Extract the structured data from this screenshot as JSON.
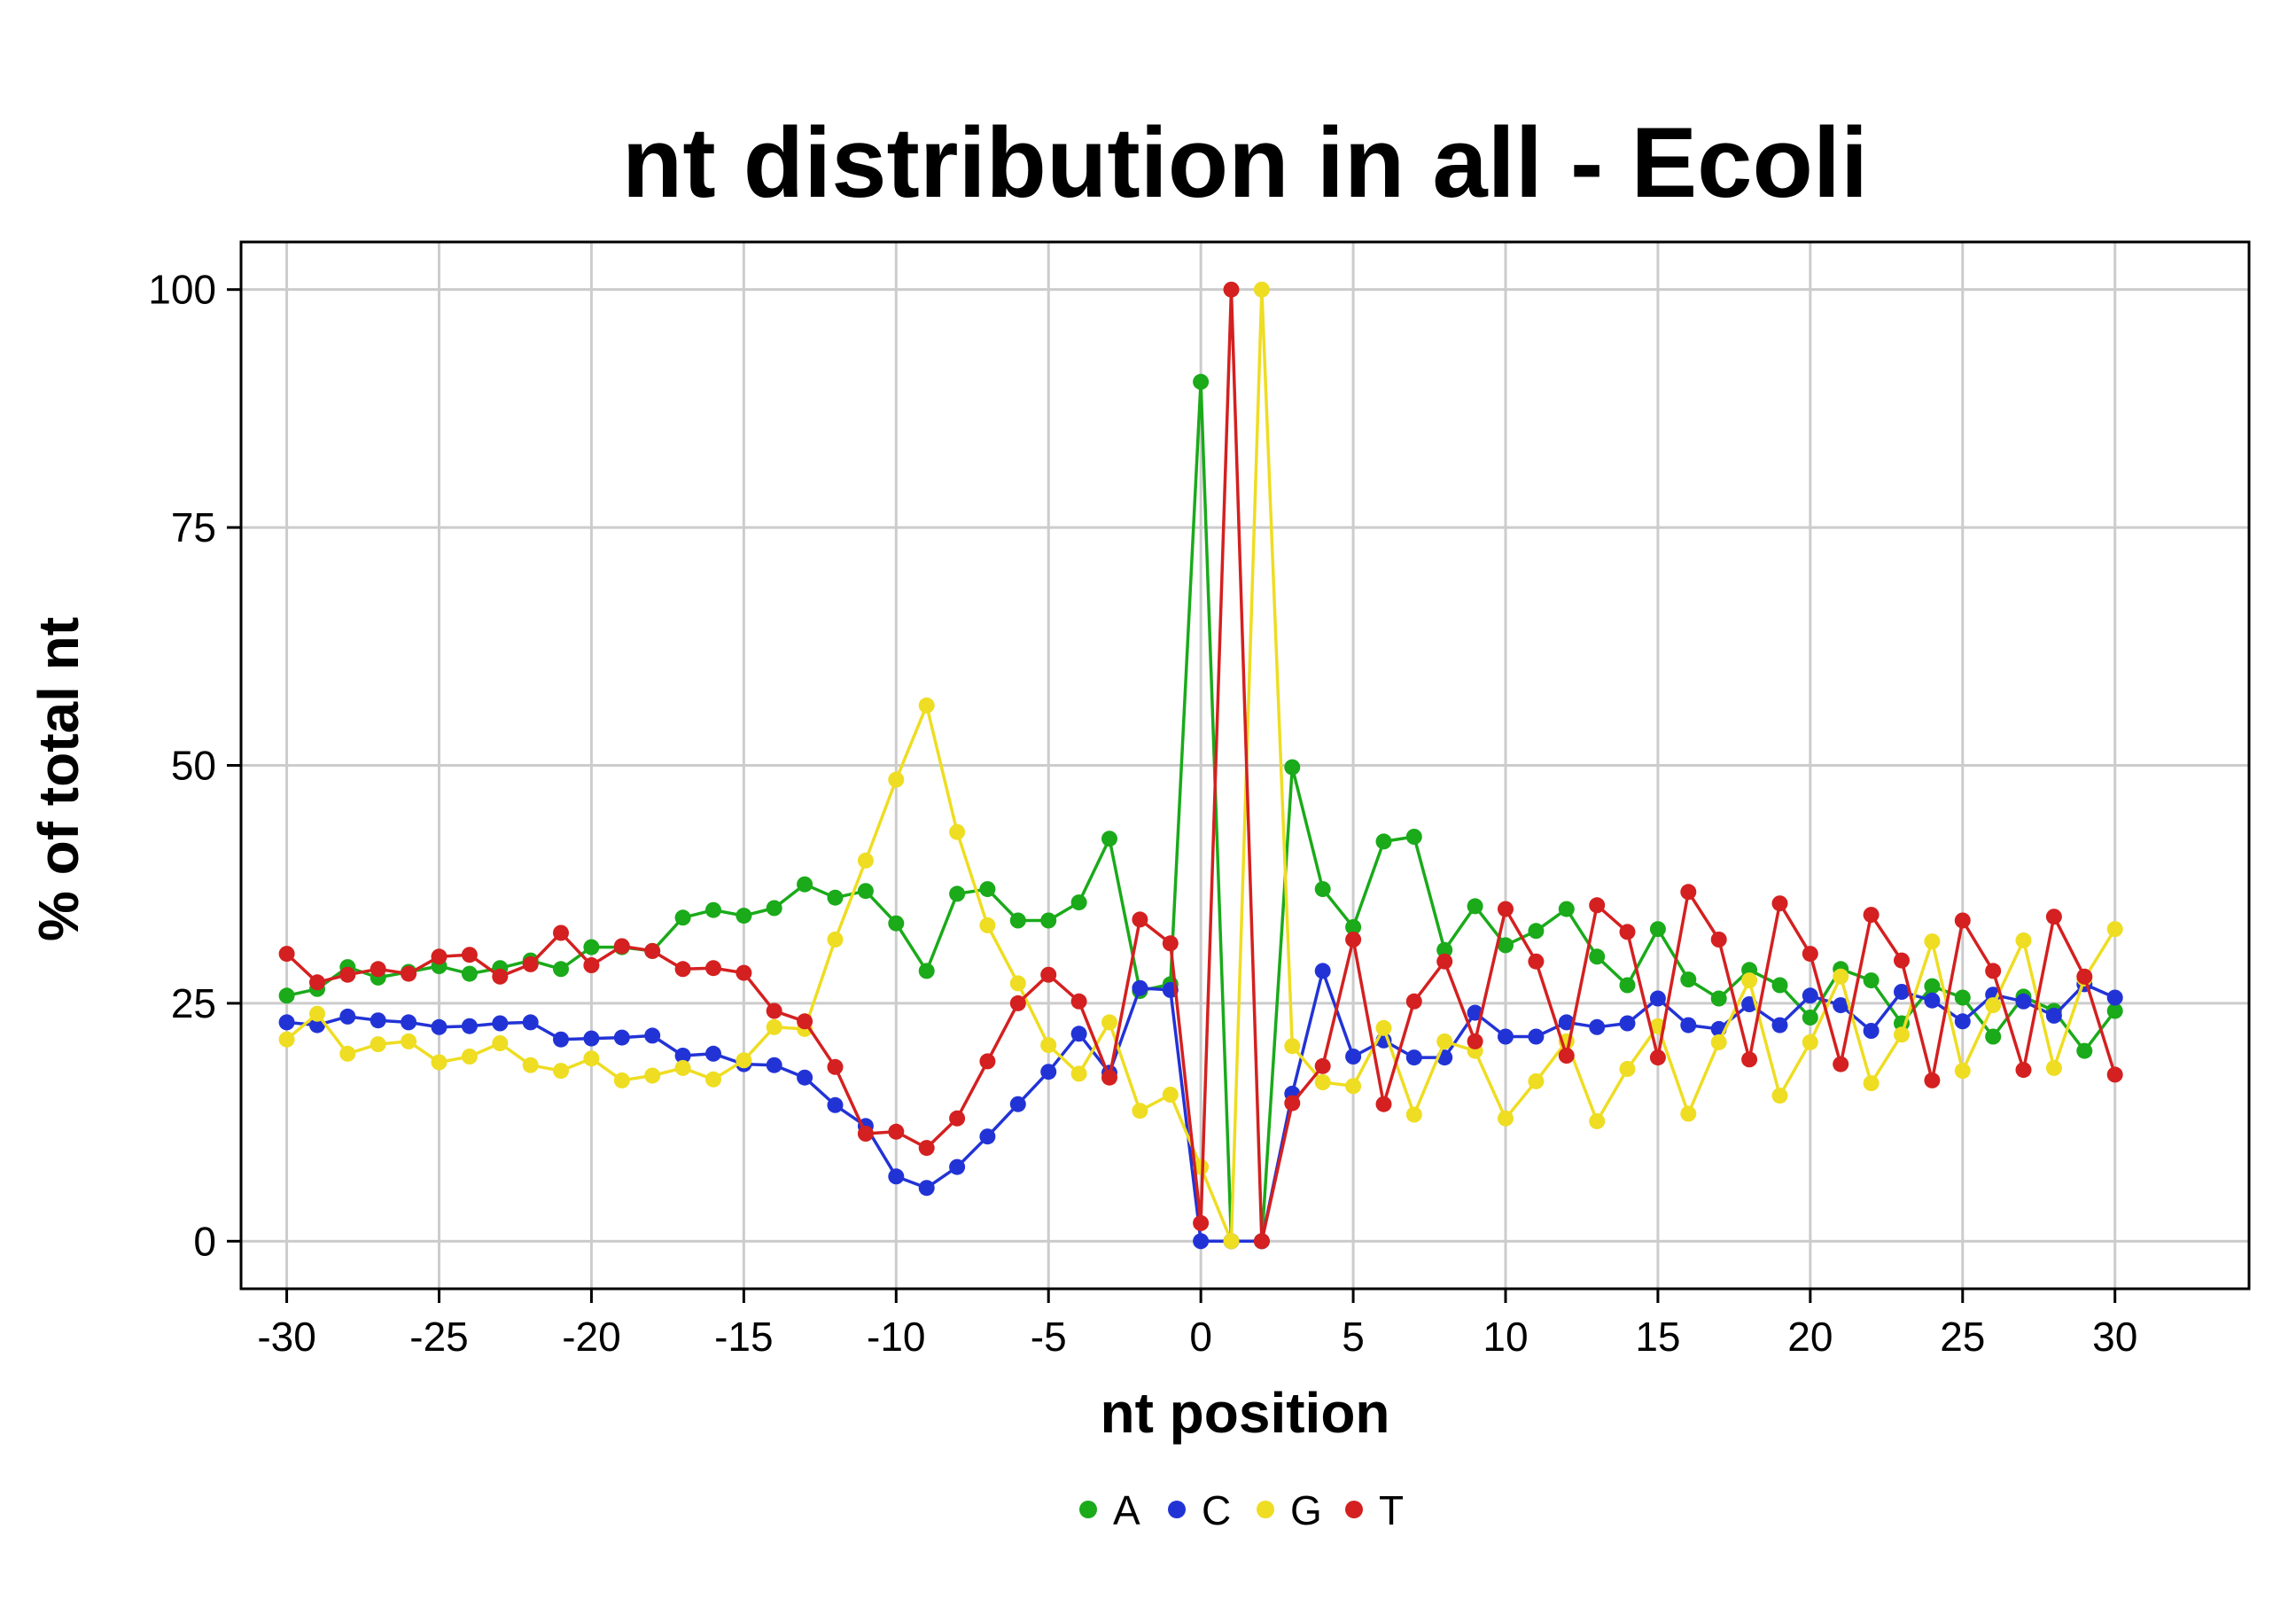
{
  "chart_data": {
    "type": "line",
    "title": "nt distribution in all - Ecoli",
    "xlabel": "nt position",
    "ylabel": "% of total nt",
    "xlim": [
      -31.5,
      34.4
    ],
    "ylim": [
      -5,
      105
    ],
    "xticks": [
      -30,
      -25,
      -20,
      -15,
      -10,
      -5,
      0,
      5,
      10,
      15,
      20,
      25,
      30
    ],
    "xtick_labels": [
      "-30",
      "-25",
      "-20",
      "-15",
      "-10",
      "-5",
      "0",
      "5",
      "10",
      "15",
      "20",
      "25",
      "30"
    ],
    "yticks": [
      0,
      25,
      50,
      75,
      100
    ],
    "ytick_labels": [
      "0",
      "25",
      "50",
      "75",
      "100"
    ],
    "grid": true,
    "legend_position": "bottom",
    "x": [
      -30,
      -29,
      -28,
      -27,
      -26,
      -25,
      -24,
      -23,
      -22,
      -21,
      -20,
      -19,
      -18,
      -17,
      -16,
      -15,
      -14,
      -13,
      -12,
      -11,
      -10,
      -9,
      -8,
      -7,
      -6,
      -5,
      -4,
      -3,
      -2,
      -1,
      0,
      1,
      2,
      3,
      4,
      5,
      6,
      7,
      8,
      9,
      10,
      11,
      12,
      13,
      14,
      15,
      16,
      17,
      18,
      19,
      20,
      21,
      22,
      23,
      24,
      25,
      26,
      27,
      28,
      29,
      30
    ],
    "series": [
      {
        "name": "A",
        "color": "#1aaa1a",
        "values": [
          25.8,
          26.5,
          28.8,
          27.7,
          28.3,
          28.9,
          28.1,
          28.7,
          29.5,
          28.6,
          30.9,
          30.9,
          30.5,
          34.0,
          34.8,
          34.2,
          35.0,
          37.5,
          36.1,
          36.8,
          33.4,
          28.4,
          36.5,
          37.0,
          33.7,
          33.7,
          35.6,
          42.3,
          26.3,
          27.0,
          90.3,
          0.0,
          0.0,
          49.8,
          37.0,
          33.0,
          42.0,
          42.5,
          30.6,
          35.2,
          31.1,
          32.6,
          34.9,
          29.9,
          26.9,
          32.8,
          27.5,
          25.5,
          28.5,
          26.9,
          23.5,
          28.6,
          27.4,
          22.9,
          26.8,
          25.6,
          21.5,
          25.7,
          24.2,
          20.0,
          24.2
        ]
      },
      {
        "name": "C",
        "color": "#2233d6",
        "values": [
          23.0,
          22.7,
          23.6,
          23.2,
          23.0,
          22.5,
          22.6,
          22.9,
          23.0,
          21.2,
          21.3,
          21.4,
          21.6,
          19.5,
          19.7,
          18.6,
          18.5,
          17.2,
          14.3,
          12.1,
          6.8,
          5.6,
          7.8,
          11.0,
          14.4,
          17.8,
          21.8,
          17.7,
          26.6,
          26.4,
          0.0,
          0.0,
          0.0,
          15.5,
          28.4,
          19.4,
          21.1,
          19.3,
          19.3,
          24.0,
          21.5,
          21.5,
          23.0,
          22.5,
          22.9,
          25.5,
          22.7,
          22.3,
          24.9,
          22.7,
          25.8,
          24.8,
          22.1,
          26.2,
          25.3,
          23.1,
          25.9,
          25.2,
          23.7,
          27.0,
          25.6
        ]
      },
      {
        "name": "G",
        "color": "#eedd22",
        "values": [
          21.2,
          23.9,
          19.7,
          20.7,
          21.0,
          18.8,
          19.4,
          20.8,
          18.5,
          17.9,
          19.2,
          16.9,
          17.4,
          18.2,
          17.0,
          19.0,
          22.5,
          22.3,
          31.7,
          40.0,
          48.5,
          56.3,
          43.0,
          33.2,
          27.1,
          20.6,
          17.6,
          23.0,
          13.7,
          15.4,
          7.8,
          0.0,
          100.0,
          20.5,
          16.7,
          16.3,
          22.4,
          13.3,
          21.0,
          20.0,
          12.9,
          16.8,
          21.0,
          12.6,
          18.1,
          22.6,
          13.4,
          20.9,
          27.4,
          15.3,
          20.9,
          27.8,
          16.6,
          21.7,
          31.5,
          17.9,
          24.8,
          31.6,
          18.2,
          27.6,
          32.8
        ]
      },
      {
        "name": "T",
        "color": "#d42020",
        "values": [
          30.2,
          27.2,
          28.0,
          28.6,
          28.1,
          29.9,
          30.1,
          27.8,
          29.1,
          32.4,
          29.0,
          31.0,
          30.5,
          28.6,
          28.7,
          28.2,
          24.2,
          23.1,
          18.3,
          11.3,
          11.5,
          9.8,
          12.9,
          18.9,
          25.0,
          28.0,
          25.2,
          17.2,
          33.8,
          31.3,
          1.9,
          100.0,
          0.0,
          14.5,
          18.4,
          31.7,
          14.4,
          25.2,
          29.4,
          21.0,
          34.9,
          29.4,
          19.5,
          35.3,
          32.5,
          19.3,
          36.7,
          31.7,
          19.1,
          35.5,
          30.2,
          18.6,
          34.3,
          29.5,
          16.9,
          33.7,
          28.4,
          18.0,
          34.1,
          27.8,
          17.5
        ]
      }
    ]
  }
}
